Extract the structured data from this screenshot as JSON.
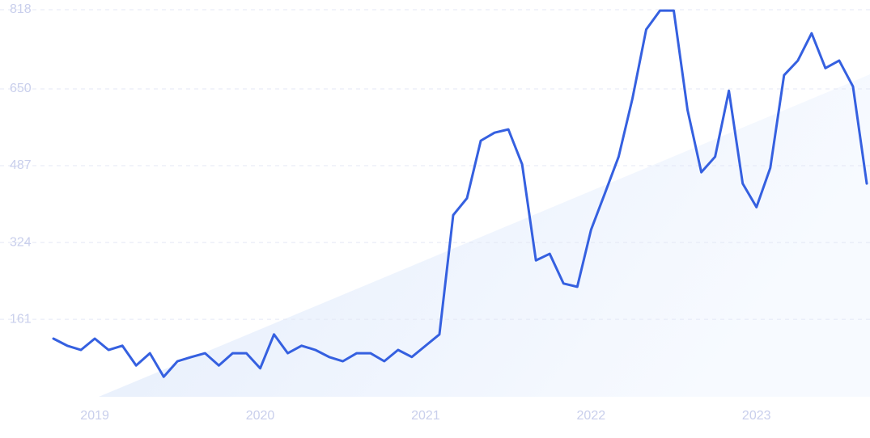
{
  "chart_data": {
    "type": "line",
    "categories": [
      null,
      null,
      null,
      "2019",
      null,
      null,
      null,
      null,
      null,
      null,
      null,
      null,
      null,
      null,
      null,
      "2020",
      null,
      null,
      null,
      null,
      null,
      null,
      null,
      null,
      null,
      null,
      null,
      "2021",
      null,
      null,
      null,
      null,
      null,
      null,
      null,
      null,
      null,
      null,
      null,
      "2022",
      null,
      null,
      null,
      null,
      null,
      null,
      null,
      null,
      null,
      null,
      null,
      "2023",
      null,
      null,
      null,
      null,
      null,
      null,
      null,
      null
    ],
    "series": [
      {
        "color": "#3560e0",
        "values": [
          120,
          105,
          96,
          120,
          96,
          105,
          63,
          89,
          39,
          72,
          81,
          89,
          63,
          89,
          89,
          57,
          129,
          89,
          105,
          96,
          81,
          72,
          89,
          89,
          72,
          96,
          81,
          105,
          129,
          382,
          418,
          540,
          557,
          564,
          490,
          286,
          300,
          237,
          230,
          351,
          428,
          506,
          629,
          776,
          816,
          816,
          605,
          473,
          506,
          646,
          449,
          399,
          482,
          679,
          710,
          768,
          694,
          710,
          655,
          449
        ]
      }
    ],
    "ylim": [
      0,
      818
    ],
    "yticks": [
      161,
      324,
      487,
      650,
      818
    ],
    "grid": true
  }
}
